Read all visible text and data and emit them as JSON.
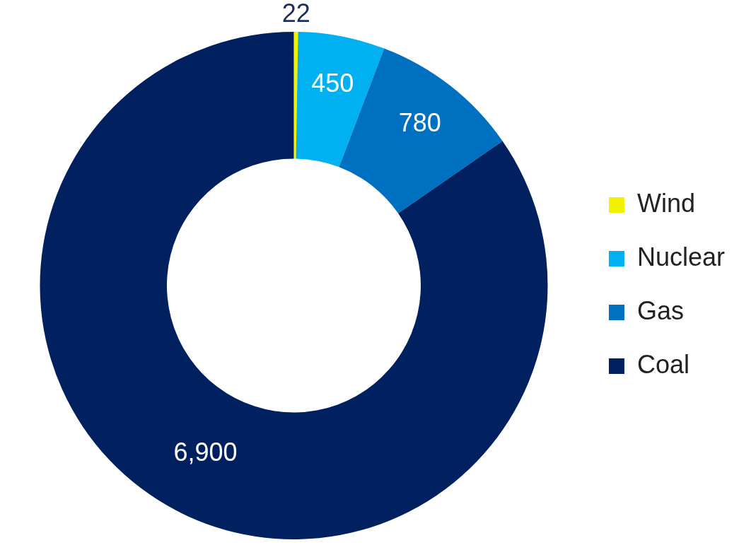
{
  "chart_data": {
    "type": "donut",
    "categories": [
      "Wind",
      "Nuclear",
      "Gas",
      "Coal"
    ],
    "values": [
      22,
      450,
      780,
      6900
    ],
    "colors": [
      "#f2f200",
      "#00b0f0",
      "#0070c0",
      "#002060"
    ],
    "value_labels": [
      "22",
      "450",
      "780",
      "6,900"
    ],
    "legend": "right"
  }
}
